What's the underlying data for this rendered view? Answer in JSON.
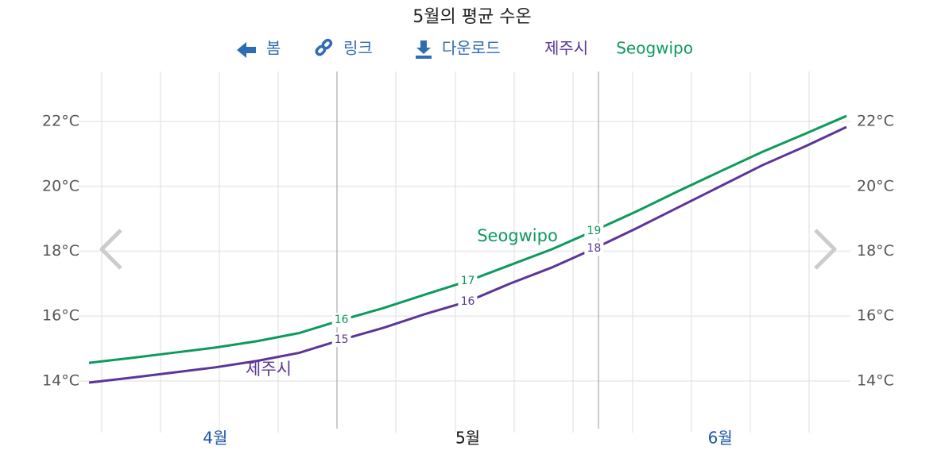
{
  "chart_data": {
    "type": "line",
    "title": "5월의 평균 수온",
    "toolbar": [
      "봄",
      "링크",
      "다운로드"
    ],
    "categories": [
      null,
      null,
      null,
      "4월",
      null,
      null,
      null,
      null,
      null,
      "5월",
      null,
      null,
      null,
      null,
      null,
      "6월",
      null,
      null,
      null
    ],
    "series": [
      {
        "name": "제주시",
        "color": "#5b3597",
        "values": [
          13.95,
          14.1,
          14.26,
          14.42,
          14.62,
          14.87,
          15.27,
          15.64,
          16.07,
          16.45,
          17.0,
          17.5,
          18.08,
          18.7,
          19.35,
          20.0,
          20.65,
          21.22,
          21.83
        ],
        "value_labels": [
          null,
          null,
          null,
          null,
          null,
          null,
          "15",
          null,
          null,
          "16",
          null,
          null,
          "18",
          null,
          null,
          null,
          null,
          null,
          null
        ]
      },
      {
        "name": "Seogwipo",
        "color": "#0d9a5c",
        "values": [
          14.56,
          14.71,
          14.87,
          15.03,
          15.23,
          15.48,
          15.88,
          16.25,
          16.67,
          17.08,
          17.57,
          18.06,
          18.63,
          19.22,
          19.85,
          20.46,
          21.06,
          21.61,
          22.17
        ],
        "value_labels": [
          null,
          null,
          null,
          null,
          null,
          null,
          "16",
          null,
          null,
          "17",
          null,
          null,
          "19",
          null,
          null,
          null,
          null,
          null,
          null
        ]
      }
    ],
    "ylim": [
      12.5,
      23.5
    ],
    "yticks": [
      {
        "value": 14,
        "label": "14°C"
      },
      {
        "value": 16,
        "label": "16°C"
      },
      {
        "value": 18,
        "label": "18°C"
      },
      {
        "value": 20,
        "label": "20°C"
      },
      {
        "value": 22,
        "label": "22°C"
      }
    ],
    "grid": true
  }
}
